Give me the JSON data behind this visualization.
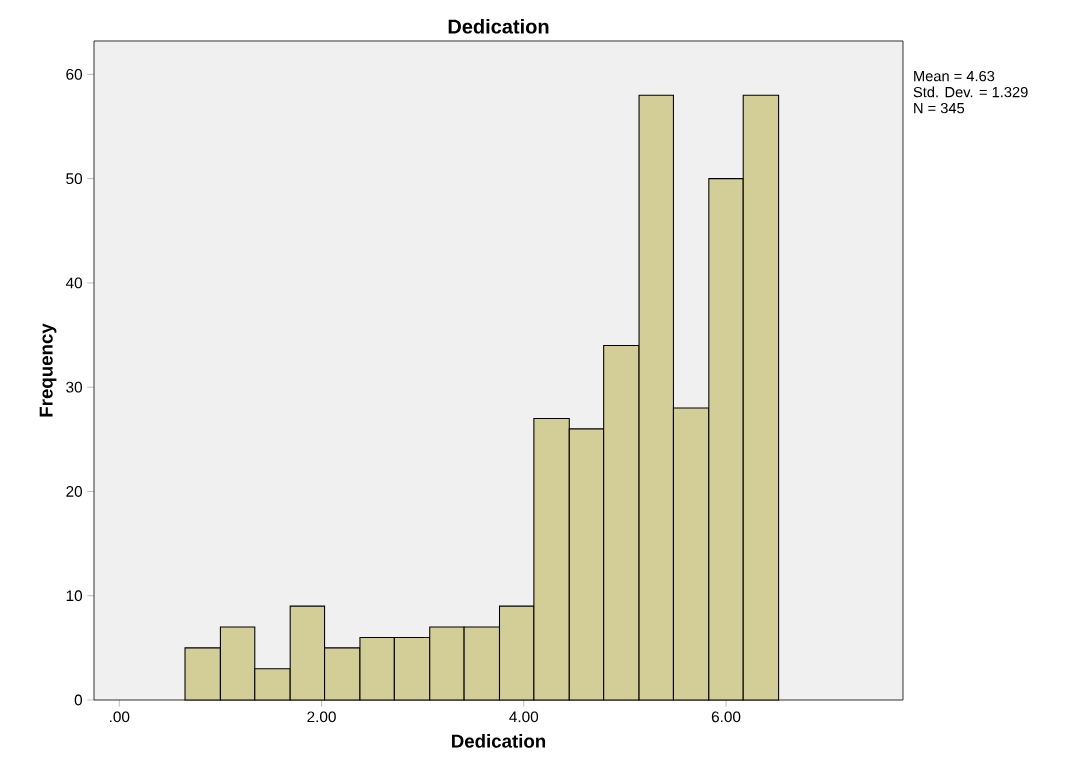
{
  "chart_data": {
    "type": "histogram",
    "title": "Dedication",
    "xlabel": "Dedication",
    "ylabel": "Frequency",
    "bins": [
      0.65,
      1.0,
      1.34,
      1.69,
      2.03,
      2.38,
      2.72,
      3.07,
      3.41,
      3.76,
      4.1,
      4.45,
      4.79,
      5.14,
      5.48,
      5.83,
      6.17,
      6.52
    ],
    "values": [
      5,
      7,
      3,
      9,
      5,
      6,
      6,
      7,
      7,
      9,
      27,
      26,
      34,
      58,
      28,
      50,
      58
    ],
    "color": "#d3ce97",
    "xlim": [
      -0.25,
      7.75
    ],
    "xticks": [
      {
        "value": 0,
        "label": ".00"
      },
      {
        "value": 2,
        "label": "2.00"
      },
      {
        "value": 4,
        "label": "4.00"
      },
      {
        "value": 6,
        "label": "6.00"
      }
    ],
    "ylim": [
      0,
      63.2
    ],
    "yticks": [
      0,
      10,
      20,
      30,
      40,
      50,
      60
    ],
    "annotations": [
      "Mean = 4.63",
      "Std. Dev. = 1.329",
      "N = 345"
    ]
  }
}
